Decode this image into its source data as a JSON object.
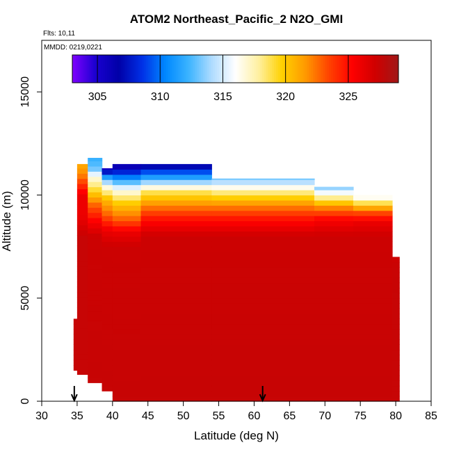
{
  "chart_data": {
    "type": "heatmap",
    "title": "ATOM2 Northeast_Pacific_2 N2O_GMI",
    "annotations": [
      "Flts: 10,11",
      "MMDD: 0219,0221"
    ],
    "xlabel": "Latitude (deg N)",
    "ylabel": "Altitude (m)",
    "xlim": [
      30,
      85
    ],
    "ylim": [
      0,
      17500
    ],
    "xticks": [
      "30",
      "35",
      "40",
      "45",
      "50",
      "55",
      "60",
      "65",
      "70",
      "75",
      "80",
      "85"
    ],
    "yticks": [
      "0",
      "5000",
      "10000",
      "15000"
    ],
    "colorbar": {
      "range": [
        303,
        329
      ],
      "ticks": [
        "305",
        "310",
        "315",
        "320",
        "325"
      ],
      "colors": [
        "#7f00ff",
        "#1a00d0",
        "#0000a8",
        "#0030e6",
        "#0088ff",
        "#3cb4ff",
        "#b0dcff",
        "#ffffff",
        "#fff0a0",
        "#ffd100",
        "#ff9a00",
        "#ff4400",
        "#ff0000",
        "#d00000",
        "#a01818"
      ]
    },
    "columns": [
      {
        "x0": 34.5,
        "x1": 35.0,
        "bottom": 1500,
        "profile": [
          [
            1500,
            327.5
          ],
          [
            4000,
            327.5
          ]
        ]
      },
      {
        "x0": 35.0,
        "x1": 36.5,
        "bottom": 1300,
        "profile": [
          [
            1300,
            327.5
          ],
          [
            8000,
            327.5
          ],
          [
            9000,
            326
          ],
          [
            10000,
            326
          ],
          [
            11000,
            322
          ],
          [
            11500,
            321
          ]
        ]
      },
      {
        "x0": 36.5,
        "x1": 38.5,
        "bottom": 900,
        "profile": [
          [
            900,
            327.5
          ],
          [
            8000,
            327.3
          ],
          [
            8700,
            325.5
          ],
          [
            9600,
            322.5
          ],
          [
            10300,
            319
          ],
          [
            10900,
            316.5
          ],
          [
            11300,
            313
          ],
          [
            11800,
            312
          ]
        ]
      },
      {
        "x0": 38.5,
        "x1": 40.0,
        "bottom": 500,
        "profile": [
          [
            500,
            327.5
          ],
          [
            7500,
            327.3
          ],
          [
            8300,
            326
          ],
          [
            9000,
            323
          ],
          [
            9800,
            320.5
          ],
          [
            10400,
            316.5
          ],
          [
            10900,
            311
          ],
          [
            11300,
            305
          ]
        ]
      },
      {
        "x0": 40.0,
        "x1": 44.0,
        "bottom": 0,
        "profile": [
          [
            0,
            327.5
          ],
          [
            7500,
            327.3
          ],
          [
            8200,
            326
          ],
          [
            8800,
            323
          ],
          [
            9600,
            320
          ],
          [
            10300,
            316
          ],
          [
            10900,
            310
          ],
          [
            11500,
            305
          ]
        ]
      },
      {
        "x0": 44.0,
        "x1": 54.0,
        "bottom": 0,
        "profile": [
          [
            0,
            327.5
          ],
          [
            8000,
            327.3
          ],
          [
            8800,
            325
          ],
          [
            9500,
            322
          ],
          [
            10200,
            318.5
          ],
          [
            10800,
            312
          ],
          [
            11500,
            306
          ]
        ]
      },
      {
        "x0": 54.0,
        "x1": 68.5,
        "bottom": 0,
        "profile": [
          [
            0,
            327.5
          ],
          [
            8000,
            327.3
          ],
          [
            8800,
            325
          ],
          [
            9500,
            322
          ],
          [
            10100,
            318.5
          ],
          [
            10800,
            313
          ]
        ]
      },
      {
        "x0": 68.5,
        "x1": 74.0,
        "bottom": 0,
        "profile": [
          [
            0,
            327.5
          ],
          [
            8000,
            327.3
          ],
          [
            8800,
            325.5
          ],
          [
            9400,
            322
          ],
          [
            10000,
            317
          ],
          [
            10400,
            313
          ]
        ]
      },
      {
        "x0": 74.0,
        "x1": 79.5,
        "bottom": 0,
        "profile": [
          [
            0,
            327.5
          ],
          [
            8000,
            327.3
          ],
          [
            8700,
            326
          ],
          [
            9200,
            323
          ],
          [
            9700,
            318
          ],
          [
            10000,
            315
          ]
        ]
      },
      {
        "x0": 79.5,
        "x1": 80.5,
        "bottom": 0,
        "profile": [
          [
            0,
            327.5
          ],
          [
            5000,
            327.5
          ],
          [
            6600,
            327.4
          ],
          [
            7000,
            327.2
          ]
        ]
      }
    ],
    "markers": [
      {
        "x": 34.6
      },
      {
        "x": 61.2
      }
    ]
  }
}
